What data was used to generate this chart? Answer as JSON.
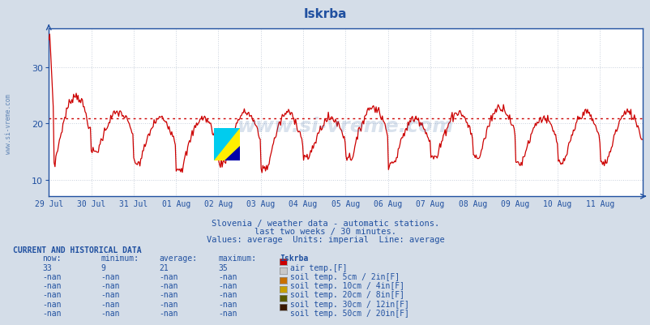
{
  "title": "Iskrba",
  "bg_color": "#d4dde8",
  "plot_bg_color": "#ffffff",
  "line_color": "#cc0000",
  "avg_line_color": "#cc0000",
  "avg_value": 21,
  "y_min": 7,
  "y_max": 37,
  "y_ticks": [
    10,
    20,
    30
  ],
  "x_labels": [
    "29 Jul",
    "30 Jul",
    "31 Jul",
    "01 Aug",
    "02 Aug",
    "03 Aug",
    "04 Aug",
    "05 Aug",
    "06 Aug",
    "07 Aug",
    "08 Aug",
    "09 Aug",
    "10 Aug",
    "11 Aug"
  ],
  "subtitle1": "Slovenia / weather data - automatic stations.",
  "subtitle2": "last two weeks / 30 minutes.",
  "subtitle3": "Values: average  Units: imperial  Line: average",
  "watermark": "www.si-vreme.com",
  "table_header": "CURRENT AND HISTORICAL DATA",
  "col_headers": [
    "now:",
    "minimum:",
    "average:",
    "maximum:",
    "Iskrba"
  ],
  "rows": [
    {
      "now": "33",
      "min": "9",
      "avg": "21",
      "max": "35",
      "color": "#cc0000",
      "label": "air temp.[F]"
    },
    {
      "now": "-nan",
      "min": "-nan",
      "avg": "-nan",
      "max": "-nan",
      "color": "#c8c8c8",
      "label": "soil temp. 5cm / 2in[F]"
    },
    {
      "now": "-nan",
      "min": "-nan",
      "avg": "-nan",
      "max": "-nan",
      "color": "#c87000",
      "label": "soil temp. 10cm / 4in[F]"
    },
    {
      "now": "-nan",
      "min": "-nan",
      "avg": "-nan",
      "max": "-nan",
      "color": "#c8a000",
      "label": "soil temp. 20cm / 8in[F]"
    },
    {
      "now": "-nan",
      "min": "-nan",
      "avg": "-nan",
      "max": "-nan",
      "color": "#5a5a00",
      "label": "soil temp. 30cm / 12in[F]"
    },
    {
      "now": "-nan",
      "min": "-nan",
      "avg": "-nan",
      "max": "-nan",
      "color": "#3a1800",
      "label": "soil temp. 50cm / 20in[F]"
    }
  ],
  "grid_color": "#c8d0dc",
  "axis_color": "#2050a0",
  "text_color": "#2050a0",
  "title_color": "#2050a0",
  "watermark_color": "#3060a0",
  "sidebar_text": "www.si-vreme.com",
  "n_days": 14,
  "n_per_day": 48
}
